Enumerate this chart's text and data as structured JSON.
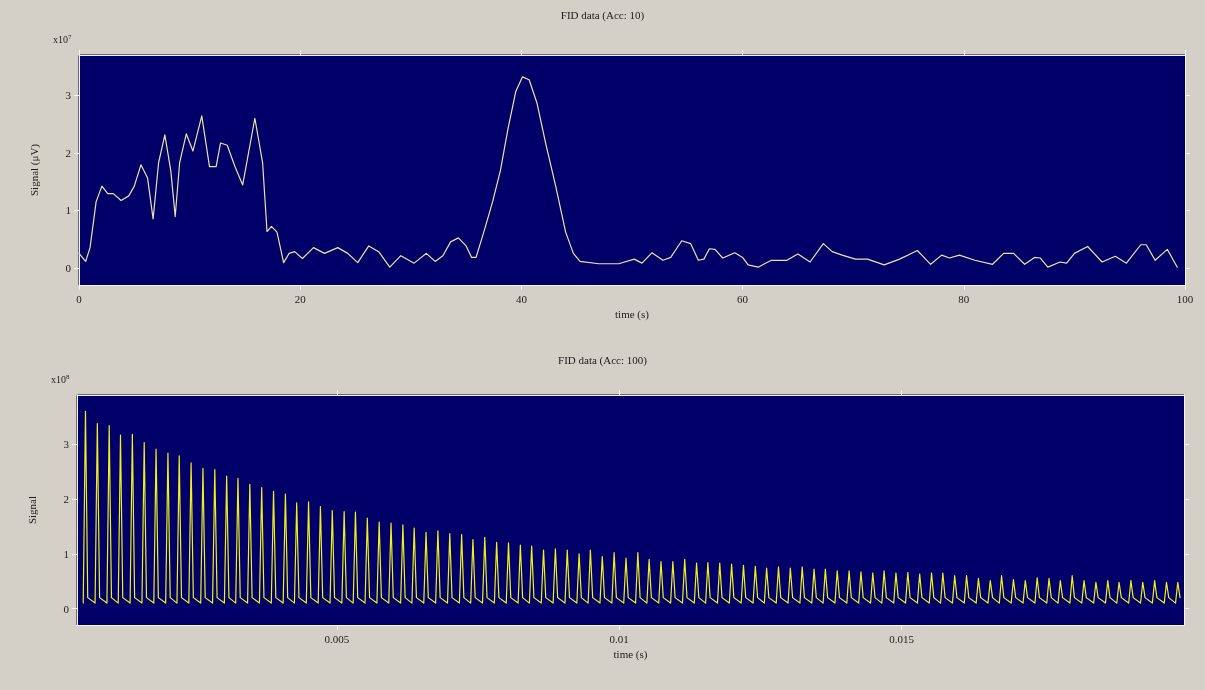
{
  "chart_data": [
    {
      "type": "line",
      "title": "FID data (Acc: 10)",
      "xlabel": "time (s)",
      "ylabel": "Signal (μV)",
      "annotations": [
        "x10$^{7}$"
      ],
      "xlim": [
        0,
        100
      ],
      "xticks": [
        0,
        20,
        40,
        60,
        80,
        100
      ],
      "ylim": [
        -0.3,
        3.7
      ],
      "yticks": [
        0,
        1,
        2,
        3
      ],
      "series": [
        {
          "color": "#e8e4a8",
          "x": [
            0,
            0.6,
            1.0,
            1.55,
            2.07,
            2.6,
            3.1,
            3.8,
            4.5,
            5.0,
            5.6,
            6.2,
            6.7,
            7.2,
            7.76,
            8.3,
            8.7,
            9.1,
            9.7,
            10.3,
            11.1,
            11.8,
            12.4,
            12.8,
            13.4,
            14.1,
            14.8,
            15.9,
            16.6,
            17.0,
            17.4,
            17.9,
            18.5,
            19.0,
            19.5,
            20.2,
            21.2,
            22.2,
            23.4,
            24.3,
            25.2,
            26.2,
            27.1,
            28.1,
            29.1,
            30.3,
            31.4,
            32.2,
            32.9,
            33.6,
            34.3,
            35.0,
            35.5,
            35.9,
            36.6,
            37.4,
            38.1,
            38.8,
            39.5,
            40.1,
            40.7,
            41.4,
            42.2,
            43.1,
            44.0,
            44.7,
            45.3,
            47.0,
            48.8,
            50.2,
            50.9,
            51.8,
            52.8,
            53.5,
            54.5,
            55.3,
            56.0,
            56.5,
            57.0,
            57.5,
            58.2,
            59.3,
            60.0,
            60.5,
            61.4,
            62.6,
            64.0,
            65.0,
            66.1,
            67.3,
            68.1,
            69.0,
            70.2,
            71.3,
            72.8,
            74.2,
            75.8,
            77.0,
            78.0,
            78.7,
            79.6,
            81.0,
            82.6,
            83.6,
            84.5,
            85.5,
            86.4,
            86.9,
            87.6,
            88.7,
            89.3,
            90.0,
            91.2,
            92.5,
            93.7,
            94.7,
            96.0,
            96.5,
            97.3,
            98.4,
            99.3
          ],
          "values": [
            0.25,
            0.11,
            0.35,
            1.15,
            1.42,
            1.29,
            1.29,
            1.17,
            1.25,
            1.42,
            1.79,
            1.56,
            0.85,
            1.83,
            2.31,
            1.69,
            0.89,
            1.83,
            2.33,
            2.03,
            2.64,
            1.76,
            1.76,
            2.17,
            2.13,
            1.76,
            1.44,
            2.6,
            1.83,
            0.63,
            0.72,
            0.62,
            0.09,
            0.25,
            0.28,
            0.16,
            0.35,
            0.25,
            0.35,
            0.25,
            0.09,
            0.38,
            0.28,
            0.01,
            0.21,
            0.08,
            0.25,
            0.11,
            0.21,
            0.45,
            0.52,
            0.38,
            0.18,
            0.18,
            0.62,
            1.15,
            1.69,
            2.43,
            3.07,
            3.32,
            3.27,
            2.87,
            2.16,
            1.42,
            0.62,
            0.25,
            0.11,
            0.07,
            0.07,
            0.15,
            0.08,
            0.26,
            0.13,
            0.18,
            0.47,
            0.42,
            0.13,
            0.15,
            0.33,
            0.32,
            0.17,
            0.26,
            0.18,
            0.05,
            0.01,
            0.13,
            0.13,
            0.24,
            0.1,
            0.42,
            0.28,
            0.22,
            0.15,
            0.15,
            0.05,
            0.15,
            0.3,
            0.06,
            0.22,
            0.17,
            0.22,
            0.13,
            0.06,
            0.25,
            0.25,
            0.06,
            0.18,
            0.17,
            0.01,
            0.1,
            0.08,
            0.25,
            0.37,
            0.1,
            0.2,
            0.08,
            0.4,
            0.4,
            0.13,
            0.32,
            0.01
          ]
        }
      ]
    },
    {
      "type": "line",
      "title": "FID data (Acc: 100)",
      "xlabel": "time (s)",
      "ylabel": "Signal",
      "annotations": [
        "x10$^{8}$"
      ],
      "xlim": [
        0.0004,
        0.02
      ],
      "xticks": [
        0.005,
        0.01,
        0.015
      ],
      "ylim": [
        -0.3,
        3.9
      ],
      "yticks": [
        0,
        1,
        2,
        3
      ],
      "series": [
        {
          "color": "#f0f020",
          "x": [
            0.00051,
            0.00055,
            0.00059,
            0.00072,
            0.00076,
            0.0008,
            0.00093,
            0.00097,
            0.00101,
            0.00113,
            0.00117,
            0.00121,
            0.00134,
            0.00138,
            0.00142,
            0.00155,
            0.00159,
            0.00163,
            0.00176,
            0.0018,
            0.00184,
            0.00197,
            0.00201,
            0.00205,
            0.00217,
            0.00221,
            0.00225,
            0.00238,
            0.00242,
            0.00246,
            0.00259,
            0.00263,
            0.00267,
            0.0028,
            0.00284,
            0.00288,
            0.00301,
            0.00305,
            0.00309,
            0.00321,
            0.00325,
            0.00329,
            0.00342,
            0.00346,
            0.0035,
            0.00363,
            0.00367,
            0.00371,
            0.00384,
            0.00388,
            0.00392,
            0.00405,
            0.00409,
            0.00413,
            0.00425,
            0.00429,
            0.00433,
            0.00446,
            0.0045,
            0.00454,
            0.00467,
            0.00471,
            0.00475,
            0.00488,
            0.00492,
            0.00496,
            0.00509,
            0.00513,
            0.00517,
            0.00529,
            0.00533,
            0.00537,
            0.0055,
            0.00554,
            0.00558,
            0.00571,
            0.00575,
            0.00579,
            0.00592,
            0.00596,
            0.006,
            0.00613,
            0.00617,
            0.00621,
            0.00633,
            0.00637,
            0.00641,
            0.00654,
            0.00658,
            0.00662,
            0.00675,
            0.00679,
            0.00683,
            0.00696,
            0.007,
            0.00704,
            0.00717,
            0.00721,
            0.00725,
            0.00737,
            0.00741,
            0.00745,
            0.00758,
            0.00762,
            0.00766,
            0.00779,
            0.00783,
            0.00787,
            0.008,
            0.00804,
            0.00808,
            0.00821,
            0.00825,
            0.00829,
            0.00841,
            0.00845,
            0.00849,
            0.00862,
            0.00866,
            0.0087,
            0.00883,
            0.00887,
            0.00891,
            0.00904,
            0.00908,
            0.00912,
            0.00925,
            0.00929,
            0.00933,
            0.00945,
            0.00949,
            0.00953,
            0.00966,
            0.0097,
            0.00974,
            0.00987,
            0.00991,
            0.00995,
            0.01008,
            0.01012,
            0.01016,
            0.01029,
            0.01033,
            0.01037,
            0.01049,
            0.01053,
            0.01057,
            0.0107,
            0.01074,
            0.01078,
            0.01091,
            0.01095,
            0.01099,
            0.01112,
            0.01116,
            0.0112,
            0.01133,
            0.01137,
            0.01141,
            0.01153,
            0.01157,
            0.01161,
            0.01174,
            0.01178,
            0.01182,
            0.01195,
            0.01199,
            0.01203,
            0.01216,
            0.0122,
            0.01224,
            0.01237,
            0.01241,
            0.01245,
            0.01257,
            0.01261,
            0.01265,
            0.01278,
            0.01282,
            0.01286,
            0.01299,
            0.01303,
            0.01307,
            0.0132,
            0.01324,
            0.01328,
            0.01341,
            0.01345,
            0.01349,
            0.01361,
            0.01365,
            0.01369,
            0.01382,
            0.01386,
            0.0139,
            0.01403,
            0.01407,
            0.01411,
            0.01424,
            0.01428,
            0.01432,
            0.01445,
            0.01449,
            0.01453,
            0.01465,
            0.01469,
            0.01473,
            0.01486,
            0.0149,
            0.01494,
            0.01507,
            0.01511,
            0.01515,
            0.01528,
            0.01532,
            0.01536,
            0.01549,
            0.01553,
            0.01557,
            0.01569,
            0.01573,
            0.01577,
            0.0159,
            0.01594,
            0.01598,
            0.01611,
            0.01615,
            0.01619,
            0.01632,
            0.01636,
            0.0164,
            0.01653,
            0.01657,
            0.01661,
            0.01673,
            0.01677,
            0.01681,
            0.01694,
            0.01698,
            0.01702,
            0.01715,
            0.01719,
            0.01723,
            0.01736,
            0.0174,
            0.01744,
            0.01757,
            0.01761,
            0.01765,
            0.01777,
            0.01781,
            0.01785,
            0.01798,
            0.01802,
            0.01806,
            0.01819,
            0.01823,
            0.01827,
            0.0184,
            0.01844,
            0.01848,
            0.01861,
            0.01865,
            0.01869,
            0.01881,
            0.01885,
            0.01889,
            0.01902,
            0.01906,
            0.0191,
            0.01923,
            0.01927,
            0.01931,
            0.01944,
            0.01948,
            0.01952,
            0.01965,
            0.01969,
            0.01973,
            0.01985,
            0.01989,
            0.01993
          ],
          "values": [
            0.1,
            3.6,
            0.2,
            0.1,
            3.38,
            0.2,
            0.1,
            3.34,
            0.2,
            0.1,
            3.17,
            0.2,
            0.1,
            3.18,
            0.2,
            0.1,
            3.03,
            0.2,
            0.1,
            2.91,
            0.2,
            0.1,
            2.84,
            0.2,
            0.1,
            2.79,
            0.2,
            0.1,
            2.66,
            0.2,
            0.1,
            2.56,
            0.2,
            0.1,
            2.54,
            0.2,
            0.1,
            2.42,
            0.2,
            0.1,
            2.38,
            0.2,
            0.1,
            2.27,
            0.2,
            0.1,
            2.21,
            0.2,
            0.1,
            2.14,
            0.2,
            0.1,
            2.09,
            0.2,
            0.1,
            1.93,
            0.2,
            0.1,
            1.95,
            0.2,
            0.1,
            1.86,
            0.2,
            0.1,
            1.79,
            0.2,
            0.1,
            1.77,
            0.2,
            0.1,
            1.76,
            0.2,
            0.1,
            1.65,
            0.2,
            0.1,
            1.58,
            0.2,
            0.1,
            1.56,
            0.2,
            0.1,
            1.53,
            0.2,
            0.1,
            1.47,
            0.2,
            0.1,
            1.39,
            0.2,
            0.1,
            1.42,
            0.2,
            0.1,
            1.37,
            0.2,
            0.1,
            1.35,
            0.2,
            0.1,
            1.26,
            0.2,
            0.1,
            1.3,
            0.2,
            0.1,
            1.21,
            0.2,
            0.1,
            1.2,
            0.2,
            0.1,
            1.16,
            0.2,
            0.1,
            1.14,
            0.2,
            0.1,
            1.07,
            0.2,
            0.1,
            1.09,
            0.2,
            0.1,
            1.07,
            0.2,
            0.1,
            1.0,
            0.2,
            0.1,
            1.07,
            0.2,
            0.1,
            0.95,
            0.2,
            0.1,
            1.02,
            0.2,
            0.1,
            0.92,
            0.2,
            0.1,
            1.02,
            0.2,
            0.1,
            0.9,
            0.2,
            0.1,
            0.86,
            0.2,
            0.1,
            0.86,
            0.2,
            0.1,
            0.9,
            0.2,
            0.1,
            0.83,
            0.2,
            0.1,
            0.84,
            0.2,
            0.1,
            0.83,
            0.2,
            0.1,
            0.81,
            0.2,
            0.1,
            0.79,
            0.2,
            0.1,
            0.77,
            0.2,
            0.1,
            0.74,
            0.2,
            0.1,
            0.76,
            0.2,
            0.1,
            0.74,
            0.2,
            0.1,
            0.76,
            0.2,
            0.1,
            0.72,
            0.2,
            0.1,
            0.72,
            0.2,
            0.1,
            0.69,
            0.2,
            0.1,
            0.69,
            0.2,
            0.1,
            0.67,
            0.2,
            0.1,
            0.65,
            0.2,
            0.1,
            0.69,
            0.2,
            0.1,
            0.65,
            0.2,
            0.1,
            0.66,
            0.2,
            0.1,
            0.63,
            0.2,
            0.1,
            0.65,
            0.2,
            0.1,
            0.65,
            0.2,
            0.1,
            0.6,
            0.2,
            0.1,
            0.6,
            0.2,
            0.1,
            0.55,
            0.2,
            0.1,
            0.51,
            0.2,
            0.1,
            0.6,
            0.2,
            0.1,
            0.53,
            0.2,
            0.1,
            0.51,
            0.2,
            0.1,
            0.56,
            0.2,
            0.1,
            0.55,
            0.2,
            0.1,
            0.51,
            0.2,
            0.1,
            0.6,
            0.2,
            0.1,
            0.51,
            0.2,
            0.1,
            0.48,
            0.2,
            0.1,
            0.51,
            0.2,
            0.1,
            0.48,
            0.2,
            0.1,
            0.51,
            0.2,
            0.1,
            0.48,
            0.2,
            0.1,
            0.51,
            0.2,
            0.1,
            0.48,
            0.2,
            0.1,
            0.48,
            0.2
          ]
        }
      ]
    }
  ]
}
